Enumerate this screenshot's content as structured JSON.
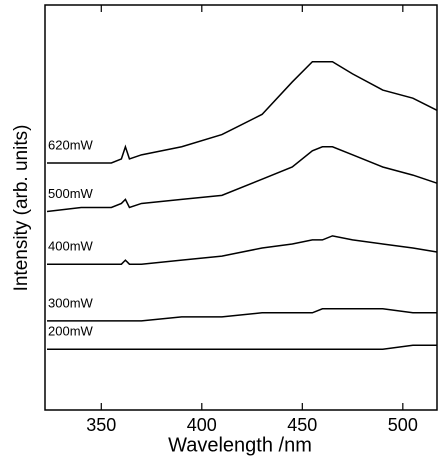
{
  "chart_data": {
    "type": "line",
    "xlabel": "Wavelength /nm",
    "ylabel": "Intensity (arb. units)",
    "x": [
      323,
      340,
      355,
      360,
      362,
      364,
      370,
      390,
      410,
      430,
      445,
      455,
      460,
      465,
      475,
      490,
      505,
      517
    ],
    "series": [
      {
        "name": "620mW",
        "color": "#000000",
        "values": [
          61,
          61,
          61,
          62,
          65,
          62,
          63,
          65,
          68,
          73,
          81,
          86,
          86,
          86,
          83,
          79,
          77,
          74
        ]
      },
      {
        "name": "500mW",
        "color": "#000000",
        "values": [
          49,
          50,
          50,
          51,
          52,
          50,
          51,
          52,
          53,
          57,
          60,
          64,
          65,
          65,
          63,
          60,
          58,
          56
        ]
      },
      {
        "name": "400mW",
        "color": "#000000",
        "values": [
          36,
          36,
          36,
          36,
          37,
          36,
          36,
          37,
          38,
          40,
          41,
          42,
          42,
          43,
          42,
          41,
          40,
          39
        ]
      },
      {
        "name": "300mW",
        "color": "#000000",
        "values": [
          22,
          22,
          22,
          22,
          22,
          22,
          22,
          23,
          23,
          24,
          24,
          24,
          25,
          25,
          25,
          25,
          24,
          24
        ]
      },
      {
        "name": "200mW",
        "color": "#000000",
        "values": [
          15,
          15,
          15,
          15,
          15,
          15,
          15,
          15,
          15,
          15,
          15,
          15,
          15,
          15,
          15,
          15,
          16,
          16
        ]
      }
    ],
    "xlim": [
      322,
      517
    ],
    "ylim": [
      0,
      100
    ],
    "xticks": [
      350,
      400,
      450,
      500
    ]
  }
}
